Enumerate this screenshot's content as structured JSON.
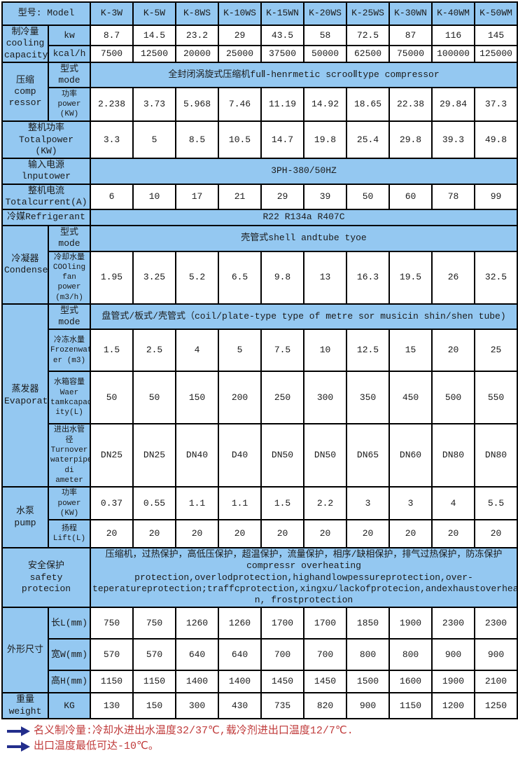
{
  "colors": {
    "label_blue": "#94c8f1",
    "border": "#000000",
    "note_red": "#c03a3a",
    "arrow_navy": "#232e8c"
  },
  "table": {
    "rows": [
      {
        "h": 33,
        "headerRow": true,
        "label2": "型号: Model",
        "cells": [
          "K-3W",
          "K-5W",
          "K-8WS",
          "K-10WS",
          "K-15WN",
          "K-20WS",
          "K-25WS",
          "K-30WN",
          "K-40WM",
          "K-50WM"
        ]
      },
      {
        "h": 29,
        "group": {
          "text": "制冷量\ncooling\ncapacity",
          "rowspan": 2
        },
        "sub": "kw",
        "cells": [
          "8.7",
          "14.5",
          "23.2",
          "29",
          "43.5",
          "58",
          "72.5",
          "87",
          "116",
          "145"
        ]
      },
      {
        "h": 23,
        "sub": "kcal/h",
        "cells": [
          "7500",
          "12500",
          "20000",
          "25000",
          "37500",
          "50000",
          "62500",
          "75000",
          "100000",
          "125000"
        ]
      },
      {
        "h": 27,
        "group": {
          "text": "压缩\ncomp\nressor",
          "rowspan": 2
        },
        "sub": "型式mode",
        "value": "全封闭涡旋式压缩机fuⅡ-henrmetic scrooⅡtype compressor"
      },
      {
        "h": 48,
        "sub": "功率\npower\n(KW)",
        "cells": [
          "2.238",
          "3.73",
          "5.968",
          "7.46",
          "11.19",
          "14.92",
          "18.65",
          "22.38",
          "29.84",
          "37.3"
        ]
      },
      {
        "h": 45,
        "label2": "整机功率\nTotalpower\n(KW)",
        "cells": [
          "3.3",
          "5",
          "8.5",
          "10.5",
          "14.7",
          "19.8",
          "25.4",
          "29.8",
          "39.3",
          "49.8"
        ]
      },
      {
        "h": 27,
        "label2": "输入电源lnputower",
        "value": "3PH-380/50HZ"
      },
      {
        "h": 30,
        "label2": "整机电流\nTotalcurrent(A)",
        "cells": [
          "6",
          "10",
          "17",
          "21",
          "29",
          "39",
          "50",
          "60",
          "78",
          "99"
        ]
      },
      {
        "h": 23,
        "label2": "冷媒Refrigerant",
        "value": "R22 R134a R407C"
      },
      {
        "h": 30,
        "group": {
          "text": "冷凝器\nCondenser",
          "rowspan": 2
        },
        "sub": "型式mode",
        "value": "壳管式shell andtube tyoe"
      },
      {
        "h": 75,
        "sub": "冷却水量\nCOOling\nfan power\n(m3/h)",
        "cells": [
          "1.95",
          "3.25",
          "5.2",
          "6.5",
          "9.8",
          "13",
          "16.3",
          "19.5",
          "26",
          "32.5"
        ]
      },
      {
        "h": 35,
        "group": {
          "text": "蒸发器\nEvaporator",
          "rowspan": 4
        },
        "sub": "型式mode",
        "value": "盘管式/板式/壳管式（coil/plate-type type of metre sor musicin shin/shen tube)"
      },
      {
        "h": 60,
        "sub": "冷冻水量\nFrozenwat\ner (m3)",
        "cells": [
          "1.5",
          "2.5",
          "4",
          "5",
          "7.5",
          "10",
          "12.5",
          "15",
          "20",
          "25"
        ]
      },
      {
        "h": 75,
        "sub": "水箱容量\nWaer\ntamkcapac\nity(L)",
        "cells": [
          "50",
          "50",
          "150",
          "200",
          "250",
          "300",
          "350",
          "450",
          "500",
          "550"
        ]
      },
      {
        "h": 85,
        "sub": "进出水管径\nTurnover\nwaterpipe\ndi ameter",
        "cells": [
          "DN25",
          "DN25",
          "DN40",
          "D40",
          "DN50",
          "DN50",
          "DN65",
          "DN60",
          "DN80",
          "DN80"
        ]
      },
      {
        "h": 40,
        "group": {
          "text": "水泵\npump",
          "rowspan": 2
        },
        "sub": "功率power\n(KW)",
        "cells": [
          "0.37",
          "0.55",
          "1.1",
          "1.1",
          "1.5",
          "2.2",
          "3",
          "3",
          "4",
          "5.5"
        ]
      },
      {
        "h": 40,
        "sub": "扬程\nLift(L)",
        "cells": [
          "20",
          "20",
          "20",
          "20",
          "20",
          "20",
          "20",
          "20",
          "20",
          "20"
        ]
      },
      {
        "h": 75,
        "label2": "安全保护\nsafety protecion",
        "safety": true,
        "value": "压缩机，过热保护，高低压保护，超温保护，流量保护，相序/缺相保护，排气过热保护，防冻保护\ncompressr overheating protection,overlodprotection,highandlowpessureprotection,over-\nteperatureprotection;traffcprotection,xingxu/lackofprotecion,andexhaustoverheatingproteio\nn,    frostprotection"
      },
      {
        "h": 45,
        "group": {
          "text": "外形尺寸",
          "rowspan": 3
        },
        "sub": "长L(mm)",
        "cells": [
          "750",
          "750",
          "1260",
          "1260",
          "1700",
          "1700",
          "1850",
          "1900",
          "2300",
          "2300"
        ]
      },
      {
        "h": 45,
        "sub": "宽W(mm)",
        "cells": [
          "570",
          "570",
          "640",
          "640",
          "700",
          "700",
          "800",
          "800",
          "900",
          "900"
        ]
      },
      {
        "h": 32,
        "sub": "高H(mm)",
        "cells": [
          "1150",
          "1150",
          "1400",
          "1400",
          "1450",
          "1450",
          "1500",
          "1600",
          "1900",
          "2100"
        ]
      },
      {
        "h": 23,
        "group": {
          "text": "重量\nweight",
          "rowspan": 1
        },
        "sub": "KG",
        "cells": [
          "130",
          "150",
          "300",
          "430",
          "735",
          "820",
          "900",
          "1150",
          "1200",
          "1250"
        ]
      }
    ]
  },
  "notes": [
    {
      "text": "名义制冷量:冷却水进出水温度32/37℃,载冷剂进出口温度12/7℃."
    },
    {
      "text": "出口温度最低可达-10℃。"
    }
  ]
}
